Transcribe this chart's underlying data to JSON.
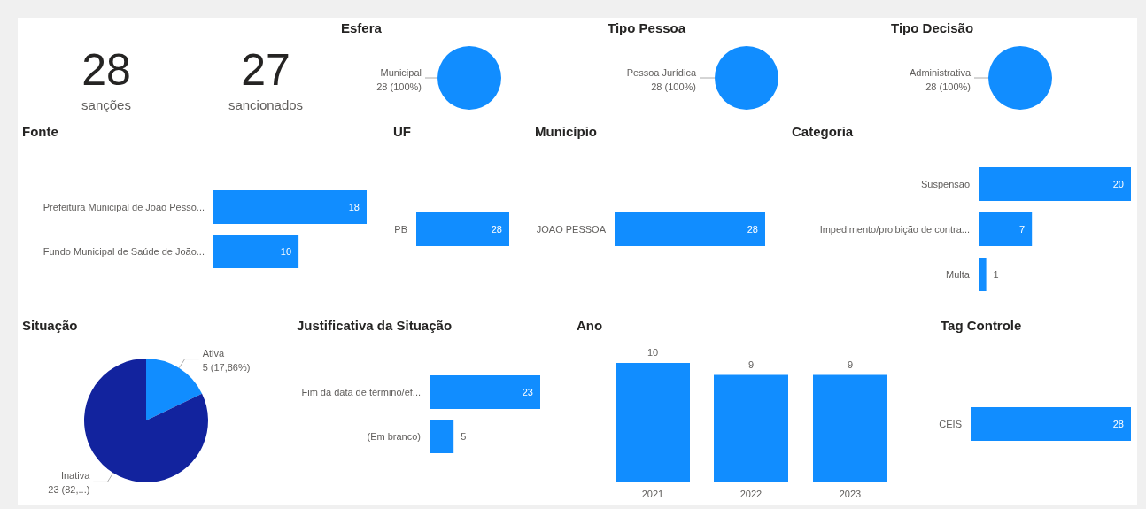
{
  "chart_data": [
    {
      "type": "other",
      "annotations": [
        "28",
        "sanções"
      ]
    },
    {
      "type": "other",
      "annotations": [
        "27",
        "sancionados"
      ]
    },
    {
      "type": "pie",
      "title": "Esfera",
      "categories": [
        "Municipal"
      ],
      "values": [
        28
      ],
      "value_labels": [
        "28 (100%)"
      ],
      "colors": [
        "#118dff"
      ]
    },
    {
      "type": "pie",
      "title": "Tipo Pessoa",
      "categories": [
        "Pessoa Jurídica"
      ],
      "values": [
        28
      ],
      "value_labels": [
        "28 (100%)"
      ],
      "colors": [
        "#118dff"
      ]
    },
    {
      "type": "pie",
      "title": "Tipo Decisão",
      "categories": [
        "Administrativa"
      ],
      "values": [
        28
      ],
      "value_labels": [
        "28 (100%)"
      ],
      "colors": [
        "#118dff"
      ]
    },
    {
      "type": "bar",
      "orientation": "horizontal",
      "title": "Fonte",
      "categories": [
        "Prefeitura Municipal de João Pesso...",
        "Fundo Municipal de Saúde de João..."
      ],
      "values": [
        18,
        10
      ],
      "color": "#118dff",
      "data_labels": true
    },
    {
      "type": "bar",
      "orientation": "horizontal",
      "title": "UF",
      "categories": [
        "PB"
      ],
      "values": [
        28
      ],
      "color": "#118dff",
      "data_labels": true
    },
    {
      "type": "bar",
      "orientation": "horizontal",
      "title": "Município",
      "categories": [
        "JOAO PESSOA"
      ],
      "values": [
        28
      ],
      "color": "#118dff",
      "data_labels": true
    },
    {
      "type": "bar",
      "orientation": "horizontal",
      "title": "Categoria",
      "categories": [
        "Suspensão",
        "Impedimento/proibição de contra...",
        "Multa"
      ],
      "values": [
        20,
        7,
        1
      ],
      "color": "#118dff",
      "data_labels": true
    },
    {
      "type": "pie",
      "title": "Situação",
      "categories": [
        "Ativa",
        "Inativa"
      ],
      "values": [
        5,
        23
      ],
      "value_labels": [
        "5 (17,86%)",
        "23 (82,...)"
      ],
      "colors": [
        "#118dff",
        "#12239e"
      ]
    },
    {
      "type": "bar",
      "orientation": "horizontal",
      "title": "Justificativa da Situação",
      "categories": [
        "Fim da data de término/ef...",
        "(Em branco)"
      ],
      "values": [
        23,
        5
      ],
      "color": "#118dff",
      "data_labels": true
    },
    {
      "type": "bar",
      "title": "Ano",
      "categories": [
        "2021",
        "2022",
        "2023"
      ],
      "values": [
        10,
        9,
        9
      ],
      "color": "#118dff",
      "data_labels": true
    },
    {
      "type": "bar",
      "orientation": "horizontal",
      "title": "Tag Controle",
      "categories": [
        "CEIS"
      ],
      "values": [
        28
      ],
      "color": "#118dff",
      "data_labels": true
    }
  ]
}
